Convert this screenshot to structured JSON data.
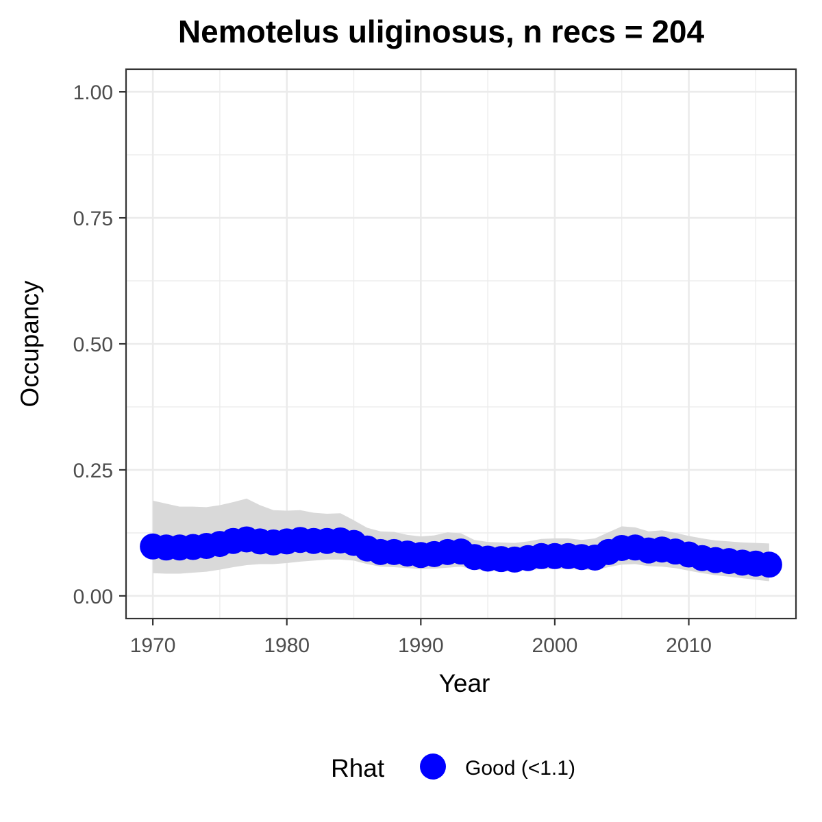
{
  "chart_data": {
    "type": "line",
    "title": "Nemotelus uliginosus, n recs = 204",
    "xlabel": "Year",
    "ylabel": "Occupancy",
    "xlim": [
      1968,
      2018
    ],
    "ylim": [
      -0.045,
      1.045
    ],
    "x_ticks": [
      1970,
      1980,
      1990,
      2000,
      2010
    ],
    "x_tick_labels": [
      "1970",
      "1980",
      "1990",
      "2000",
      "2010"
    ],
    "y_ticks": [
      0,
      0.25,
      0.5,
      0.75,
      1
    ],
    "y_tick_labels": [
      "0.00",
      "0.25",
      "0.50",
      "0.75",
      "1.00"
    ],
    "grid": true,
    "legend_position": "bottom",
    "legend_title": "Rhat",
    "series": [
      {
        "name": "Good (<1.1)",
        "color": "#0000ff",
        "band_color": "#d9d9d9",
        "x": [
          1970,
          1971,
          1972,
          1973,
          1974,
          1975,
          1976,
          1977,
          1978,
          1979,
          1980,
          1981,
          1982,
          1983,
          1984,
          1985,
          1986,
          1987,
          1988,
          1989,
          1990,
          1991,
          1992,
          1993,
          1994,
          1995,
          1996,
          1997,
          1998,
          1999,
          2000,
          2001,
          2002,
          2003,
          2004,
          2005,
          2006,
          2007,
          2008,
          2009,
          2010,
          2011,
          2012,
          2013,
          2014,
          2015,
          2016
        ],
        "y": [
          0.098,
          0.096,
          0.096,
          0.097,
          0.099,
          0.103,
          0.109,
          0.112,
          0.108,
          0.106,
          0.108,
          0.111,
          0.109,
          0.109,
          0.11,
          0.105,
          0.094,
          0.087,
          0.087,
          0.084,
          0.081,
          0.083,
          0.087,
          0.088,
          0.077,
          0.074,
          0.073,
          0.072,
          0.075,
          0.079,
          0.079,
          0.079,
          0.077,
          0.076,
          0.087,
          0.095,
          0.096,
          0.09,
          0.092,
          0.088,
          0.082,
          0.075,
          0.071,
          0.069,
          0.066,
          0.064,
          0.062
        ],
        "lower": [
          0.045,
          0.044,
          0.044,
          0.046,
          0.048,
          0.052,
          0.057,
          0.061,
          0.063,
          0.063,
          0.065,
          0.068,
          0.07,
          0.072,
          0.072,
          0.07,
          0.063,
          0.058,
          0.057,
          0.055,
          0.053,
          0.054,
          0.056,
          0.058,
          0.052,
          0.05,
          0.049,
          0.049,
          0.051,
          0.053,
          0.053,
          0.053,
          0.052,
          0.051,
          0.057,
          0.062,
          0.063,
          0.059,
          0.058,
          0.055,
          0.05,
          0.045,
          0.041,
          0.038,
          0.035,
          0.032,
          0.029
        ],
        "upper": [
          0.189,
          0.183,
          0.177,
          0.177,
          0.176,
          0.18,
          0.186,
          0.193,
          0.18,
          0.17,
          0.169,
          0.17,
          0.165,
          0.163,
          0.164,
          0.15,
          0.135,
          0.128,
          0.127,
          0.121,
          0.118,
          0.12,
          0.126,
          0.124,
          0.111,
          0.107,
          0.106,
          0.105,
          0.108,
          0.113,
          0.114,
          0.114,
          0.111,
          0.114,
          0.126,
          0.138,
          0.136,
          0.128,
          0.13,
          0.125,
          0.119,
          0.114,
          0.11,
          0.108,
          0.106,
          0.105,
          0.104
        ]
      }
    ]
  }
}
